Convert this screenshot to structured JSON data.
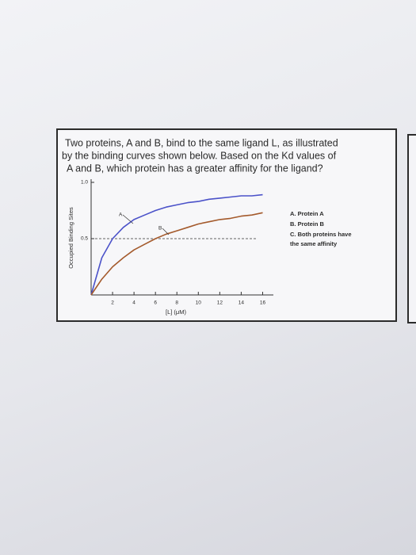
{
  "question": [
    "Two proteins, A and B, bind to the same ligand L, as illustrated",
    "by the binding curves shown below. Based on the Kd values of",
    "A and B, which protein has a greater affinity for the ligand?"
  ],
  "options": [
    "A. Protein A",
    "B. Protein B",
    "C. Both proteins have",
    "the same affinity"
  ],
  "chart_data": {
    "type": "line",
    "ylabel": "Occupied Binding Sites",
    "xlabel": "[L] (μM)",
    "x": [
      0,
      1,
      2,
      3,
      4,
      5,
      6,
      7,
      8,
      9,
      10,
      11,
      12,
      13,
      14,
      15,
      16
    ],
    "series": [
      {
        "name": "A",
        "color": "#4b52c9",
        "values": [
          0,
          0.33,
          0.5,
          0.6,
          0.67,
          0.71,
          0.75,
          0.78,
          0.8,
          0.82,
          0.83,
          0.85,
          0.86,
          0.87,
          0.88,
          0.88,
          0.89
        ]
      },
      {
        "name": "B",
        "color": "#a45a2c",
        "values": [
          0,
          0.14,
          0.25,
          0.33,
          0.4,
          0.45,
          0.5,
          0.54,
          0.57,
          0.6,
          0.63,
          0.65,
          0.67,
          0.68,
          0.7,
          0.71,
          0.73
        ]
      }
    ],
    "xlim": [
      0,
      17
    ],
    "ylim": [
      0,
      1
    ],
    "xticks": [
      2,
      4,
      6,
      8,
      10,
      12,
      14,
      16
    ],
    "yticks": [
      {
        "value": 1,
        "label": "1.0"
      },
      0.5
    ]
  }
}
